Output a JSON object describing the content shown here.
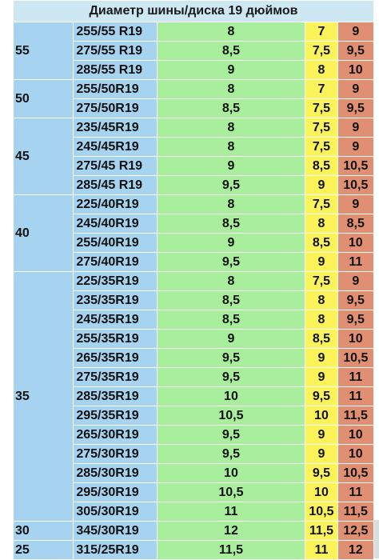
{
  "title": "Диаметр шины/диска 19 дюймов",
  "colors": {
    "profile_bg": "#a6d3ef",
    "size_bg": "#a6d3ef",
    "optimal_bg": "#a9ee9c",
    "min_bg": "#fbf35a",
    "max_bg": "#e08f72",
    "header_bg": "#cde7f3"
  },
  "groups": [
    {
      "profile": "55",
      "rows": [
        {
          "size": "255/55 R19",
          "optimal": "8",
          "min": "7",
          "max": "9"
        },
        {
          "size": "275/55 R19",
          "optimal": "8,5",
          "min": "7,5",
          "max": "9,5"
        },
        {
          "size": "285/55 R19",
          "optimal": "9",
          "min": "8",
          "max": "10"
        }
      ]
    },
    {
      "profile": "50",
      "rows": [
        {
          "size": "255/50R19",
          "optimal": "8",
          "min": "7",
          "max": "9"
        },
        {
          "size": "275/50R19",
          "optimal": "8,5",
          "min": "7,5",
          "max": "9,5"
        }
      ]
    },
    {
      "profile": "45",
      "rows": [
        {
          "size": "235/45R19",
          "optimal": "8",
          "min": "7,5",
          "max": "9"
        },
        {
          "size": "245/45R19",
          "optimal": "8",
          "min": "7,5",
          "max": "9"
        },
        {
          "size": "275/45 R19",
          "optimal": "9",
          "min": "8,5",
          "max": "10,5"
        },
        {
          "size": "285/45 R19",
          "optimal": "9,5",
          "min": "9",
          "max": "10,5"
        }
      ]
    },
    {
      "profile": "40",
      "rows": [
        {
          "size": "225/40R19",
          "optimal": "8",
          "min": "7,5",
          "max": "9"
        },
        {
          "size": "245/40R19",
          "optimal": "8,5",
          "min": "8",
          "max": "8,5"
        },
        {
          "size": "255/40R19",
          "optimal": "9",
          "min": "8,5",
          "max": "10"
        },
        {
          "size": "275/40R19",
          "optimal": "9,5",
          "min": "9",
          "max": "11"
        }
      ]
    },
    {
      "profile": "35",
      "rows": [
        {
          "size": "225/35R19",
          "optimal": "8",
          "min": "7,5",
          "max": "9"
        },
        {
          "size": "235/35R19",
          "optimal": "8,5",
          "min": "8",
          "max": "9,5"
        },
        {
          "size": "245/35R19",
          "optimal": "8,5",
          "min": "8",
          "max": "9,5"
        },
        {
          "size": "255/35R19",
          "optimal": "9",
          "min": "8,5",
          "max": "10"
        },
        {
          "size": "265/35R19",
          "optimal": "9,5",
          "min": "9",
          "max": "10,5"
        },
        {
          "size": "275/35R19",
          "optimal": "9,5",
          "min": "9",
          "max": "11"
        },
        {
          "size": "285/35R19",
          "optimal": "10",
          "min": "9,5",
          "max": "11"
        },
        {
          "size": "295/35R19",
          "optimal": "10,5",
          "min": "10",
          "max": "11,5"
        },
        {
          "size": "265/30R19",
          "optimal": "9,5",
          "min": "9",
          "max": "10"
        },
        {
          "size": "275/30R19",
          "optimal": "9,5",
          "min": "9",
          "max": "10"
        },
        {
          "size": "285/30R19",
          "optimal": "10",
          "min": "9,5",
          "max": "10,5"
        },
        {
          "size": "295/30R19",
          "optimal": "10,5",
          "min": "10",
          "max": "11"
        },
        {
          "size": "305/30R19",
          "optimal": "11",
          "min": "10,5",
          "max": "11,5"
        }
      ]
    },
    {
      "profile": "30",
      "rows": [
        {
          "size": "345/30R19",
          "optimal": "12",
          "min": "11,5",
          "max": "12,5"
        }
      ]
    },
    {
      "profile": "25",
      "rows": [
        {
          "size": "315/25R19",
          "optimal": "11,5",
          "min": "11",
          "max": "12"
        }
      ]
    }
  ]
}
